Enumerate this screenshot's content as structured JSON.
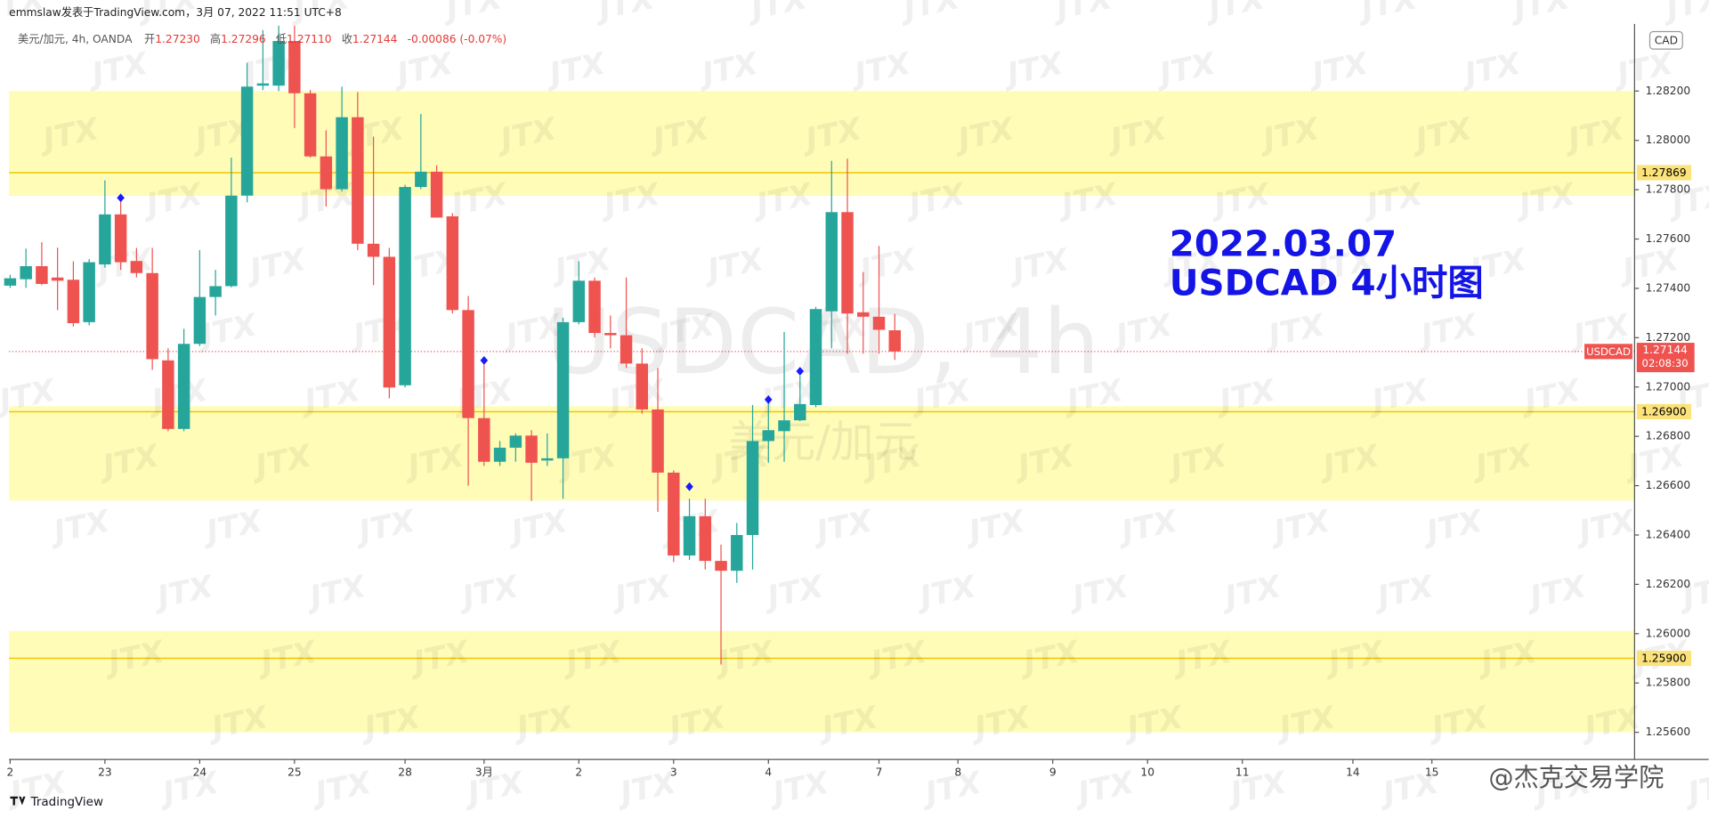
{
  "chart_data": {
    "type": "candlestick",
    "publisher": "emmslaw发表于TradingView.com，3月 07, 2022 11:51 UTC+8",
    "legend": {
      "symbol": "美元/加元, 4h, OANDA",
      "fields": [
        {
          "label": "开",
          "value": "1.27230"
        },
        {
          "label": "高",
          "value": "1.27296"
        },
        {
          "label": "低",
          "value": "1.27110"
        },
        {
          "label": "收",
          "value": "1.27144"
        }
      ],
      "change": "-0.00086 (-0.07%)"
    },
    "currency": "CAD",
    "watermark_symbol": "USDCAD, 4h",
    "watermark_name": "美元/加元",
    "watermark_brand": "JTX",
    "annotation": [
      "2022.03.07",
      "USDCAD 4小时图"
    ],
    "footer_brand": "TradingView",
    "footer_credit": "@杰克交易学院",
    "up_color": "#26a69a",
    "down_color": "#ef5350",
    "grid": false,
    "x": [
      0,
      1,
      2,
      3,
      4,
      5,
      6,
      7,
      8,
      9,
      10,
      11,
      12,
      13,
      14,
      15,
      16,
      17,
      18,
      19,
      20,
      21,
      22,
      23,
      24,
      25,
      26,
      27,
      28,
      29,
      30,
      31,
      32,
      33,
      34,
      35,
      36,
      37,
      38,
      39,
      40,
      41,
      42,
      43,
      44,
      45,
      46,
      47,
      48,
      49,
      50,
      51,
      52,
      53,
      54,
      55,
      56
    ],
    "open": [
      1.27411,
      1.27437,
      1.2749,
      1.27444,
      1.27435,
      1.27263,
      1.27497,
      1.277,
      1.27511,
      1.27462,
      1.27108,
      1.2683,
      1.27175,
      1.27365,
      1.27409,
      1.27776,
      1.28222,
      1.28222,
      1.28403,
      1.28191,
      1.27935,
      1.27802,
      1.28094,
      1.27581,
      1.27528,
      1.27007,
      1.27811,
      1.27873,
      1.27692,
      1.27312,
      1.26874,
      1.26697,
      1.26754,
      1.26803,
      1.26702,
      1.26711,
      1.27263,
      1.27431,
      1.27219,
      1.2721,
      1.27095,
      1.26909,
      1.26653,
      1.26317,
      1.26476,
      1.26295,
      1.26255,
      1.264,
      1.26781,
      1.26821,
      1.26865,
      1.26927,
      1.27307,
      1.27709,
      1.27303,
      1.27285,
      1.2723
    ],
    "high": [
      1.27455,
      1.27561,
      1.27587,
      1.27565,
      1.2751,
      1.27519,
      1.27838,
      1.27776,
      1.27564,
      1.27564,
      1.27157,
      1.27236,
      1.27555,
      1.27475,
      1.2793,
      1.28315,
      1.28447,
      1.28465,
      1.28465,
      1.28204,
      1.28041,
      1.28218,
      1.28196,
      1.28015,
      1.27564,
      1.2782,
      1.28107,
      1.27899,
      1.27705,
      1.27369,
      1.27113,
      1.26781,
      1.26812,
      1.26825,
      1.26812,
      1.27281,
      1.2751,
      1.27444,
      1.2729,
      1.27444,
      1.27157,
      1.27077,
      1.26662,
      1.26547,
      1.26547,
      1.26361,
      1.26449,
      1.26927,
      1.26936,
      1.27223,
      1.27046,
      1.27325,
      1.27917,
      1.27926,
      1.27466,
      1.27572,
      1.27296
    ],
    "low": [
      1.27402,
      1.27402,
      1.27413,
      1.27312,
      1.27245,
      1.2725,
      1.27484,
      1.27475,
      1.27444,
      1.27069,
      1.26821,
      1.26821,
      1.27166,
      1.2729,
      1.27404,
      1.27749,
      1.28204,
      1.282,
      1.2805,
      1.2793,
      1.27732,
      1.27793,
      1.27555,
      1.27413,
      1.26954,
      1.26998,
      1.27802,
      1.27687,
      1.27298,
      1.266,
      1.2668,
      1.2668,
      1.26697,
      1.26538,
      1.2668,
      1.26547,
      1.27254,
      1.27201,
      1.27157,
      1.27077,
      1.26892,
      1.26494,
      1.2629,
      1.26299,
      1.2626,
      1.25875,
      1.26206,
      1.2626,
      1.26693,
      1.26697,
      1.26861,
      1.26918,
      1.27157,
      1.27135,
      1.27135,
      1.27135,
      1.2711
    ],
    "close": [
      1.27441,
      1.2749,
      1.27418,
      1.27431,
      1.27259,
      1.27506,
      1.277,
      1.27506,
      1.27462,
      1.27113,
      1.2683,
      1.27175,
      1.27365,
      1.27409,
      1.27776,
      1.28218,
      1.28231,
      1.28403,
      1.28191,
      1.27935,
      1.27802,
      1.28094,
      1.27581,
      1.27528,
      1.26998,
      1.27811,
      1.27873,
      1.27687,
      1.27312,
      1.26874,
      1.26697,
      1.26754,
      1.26803,
      1.26693,
      1.26711,
      1.27263,
      1.27431,
      1.27219,
      1.2721,
      1.27095,
      1.26909,
      1.26653,
      1.26317,
      1.26476,
      1.26295,
      1.26255,
      1.264,
      1.26781,
      1.26825,
      1.26865,
      1.26931,
      1.27316,
      1.27709,
      1.27298,
      1.27285,
      1.27232,
      1.27144
    ],
    "markers": {
      "color": "#1a1aff",
      "x": [
        7,
        30,
        43,
        48,
        50
      ],
      "values": [
        1.27767,
        1.27108,
        1.26596,
        1.26949,
        1.27064
      ]
    },
    "zones": [
      [
        1.282,
        1.27775
      ],
      [
        1.26922,
        1.2654
      ],
      [
        1.26011,
        1.256
      ]
    ],
    "zone_color": "#fffcb8",
    "levels": {
      "color": "#f2c500",
      "values": [
        1.27869,
        1.269,
        1.259
      ],
      "value_labels": [
        "1.27869",
        "1.26900",
        "1.25900"
      ]
    },
    "last_price": {
      "value": 1.27144,
      "label": "1.27144",
      "symbol": "USDCAD",
      "countdown": "02:08:30"
    },
    "xlim": [
      -0.62,
      102.83
    ],
    "ylim": [
      1.2549,
      1.28472
    ],
    "xticks": [
      {
        "value": 0,
        "label": "2"
      },
      {
        "value": 6,
        "label": "23"
      },
      {
        "value": 12,
        "label": "24"
      },
      {
        "value": 18,
        "label": "25"
      },
      {
        "value": 25,
        "label": "28"
      },
      {
        "value": 30,
        "label": "3月"
      },
      {
        "value": 36,
        "label": "2"
      },
      {
        "value": 42,
        "label": "3"
      },
      {
        "value": 48,
        "label": "4"
      },
      {
        "value": 55,
        "label": "7"
      },
      {
        "value": 60,
        "label": "8"
      },
      {
        "value": 66,
        "label": "9"
      },
      {
        "value": 72,
        "label": "10"
      },
      {
        "value": 78,
        "label": "11"
      },
      {
        "value": 85,
        "label": "14"
      },
      {
        "value": 90,
        "label": "15"
      }
    ],
    "yticks": [
      {
        "value": 1.256,
        "label": "1.25600"
      },
      {
        "value": 1.258,
        "label": "1.25800"
      },
      {
        "value": 1.26,
        "label": "1.26000"
      },
      {
        "value": 1.262,
        "label": "1.26200"
      },
      {
        "value": 1.264,
        "label": "1.26400"
      },
      {
        "value": 1.266,
        "label": "1.26600"
      },
      {
        "value": 1.268,
        "label": "1.26800"
      },
      {
        "value": 1.27,
        "label": "1.27000"
      },
      {
        "value": 1.272,
        "label": "1.27200"
      },
      {
        "value": 1.274,
        "label": "1.27400"
      },
      {
        "value": 1.276,
        "label": "1.27600"
      },
      {
        "value": 1.278,
        "label": "1.27800"
      },
      {
        "value": 1.28,
        "label": "1.28000"
      },
      {
        "value": 1.282,
        "label": "1.28200"
      }
    ]
  }
}
